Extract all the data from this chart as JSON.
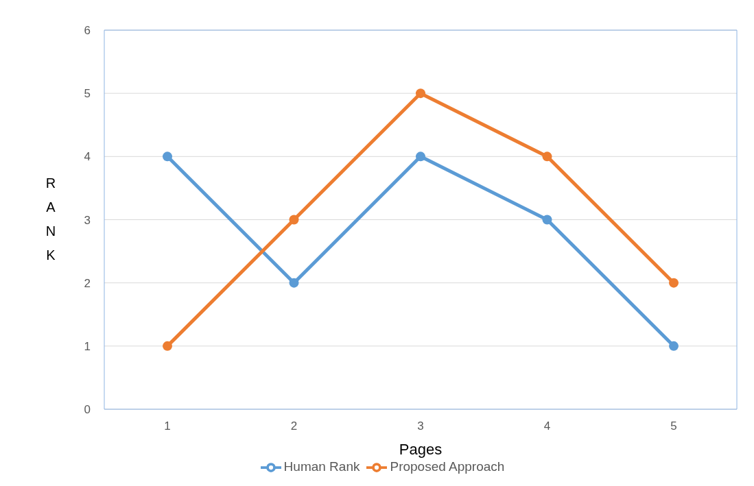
{
  "chart_data": {
    "type": "line",
    "xlabel": "Pages",
    "ylabel": "RANK",
    "categories": [
      "1",
      "2",
      "3",
      "4",
      "5"
    ],
    "series": [
      {
        "name": "Human Rank",
        "color": "#5b9bd5",
        "values": [
          4,
          2,
          4,
          3,
          1
        ]
      },
      {
        "name": "Proposed Approach",
        "color": "#ed7d31",
        "values": [
          1,
          3,
          5,
          4,
          2
        ]
      }
    ],
    "ylim": [
      0,
      6
    ],
    "yticks": [
      0,
      1,
      2,
      3,
      4,
      5,
      6
    ],
    "grid": "y",
    "legend": "bottom",
    "marker": "circle"
  }
}
